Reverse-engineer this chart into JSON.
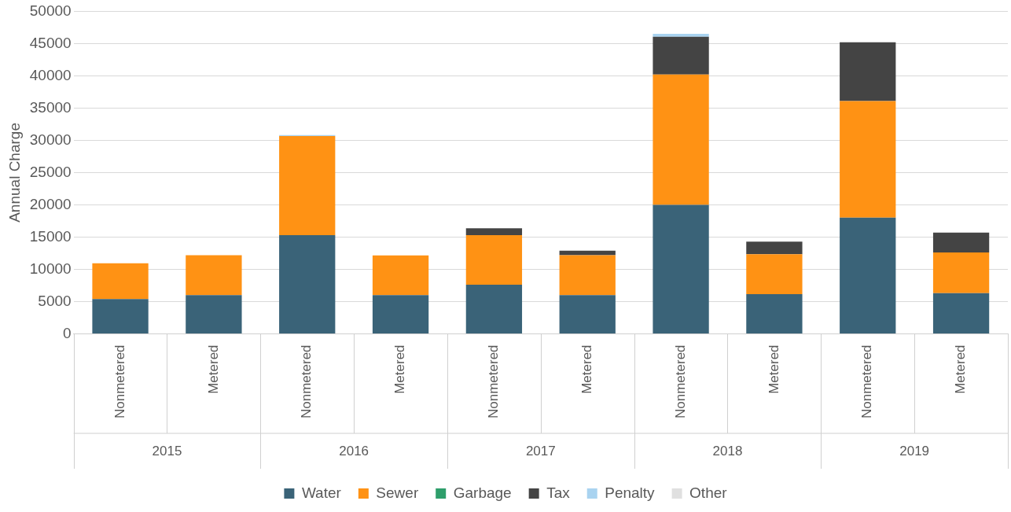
{
  "chart_data": {
    "type": "bar",
    "stacked": true,
    "ylabel": "Annual Charge",
    "categories": [
      "Nonmetered",
      "Metered",
      "Nonmetered",
      "Metered",
      "Nonmetered",
      "Metered",
      "Nonmetered",
      "Metered",
      "Nonmetered",
      "Metered"
    ],
    "annotations": [
      "2015",
      "2016",
      "2017",
      "2018",
      "2019"
    ],
    "series": [
      {
        "name": "Water",
        "color": "#3a6378",
        "values": [
          5400,
          6000,
          15300,
          6000,
          7600,
          6000,
          20000,
          6150,
          18000,
          6300
        ]
      },
      {
        "name": "Sewer",
        "color": "#ff9214",
        "values": [
          5550,
          6200,
          15350,
          6150,
          7700,
          6200,
          20200,
          6200,
          18100,
          6300
        ]
      },
      {
        "name": "Garbage",
        "color": "#2e9e6b",
        "values": [
          0,
          0,
          0,
          0,
          0,
          0,
          0,
          0,
          0,
          0
        ]
      },
      {
        "name": "Tax",
        "color": "#444444",
        "values": [
          0,
          0,
          0,
          0,
          1050,
          700,
          5850,
          1950,
          9100,
          3100
        ]
      },
      {
        "name": "Penalty",
        "color": "#a9d3f0",
        "values": [
          null,
          0,
          150,
          0,
          null,
          null,
          450,
          null,
          0,
          0
        ]
      },
      {
        "name": "Other",
        "color": "#e0e0e0",
        "values": [
          0,
          0,
          0,
          0,
          0,
          0,
          0,
          0,
          0,
          0
        ]
      }
    ],
    "ylim": [
      0,
      50000
    ],
    "yticks": [
      0,
      5000,
      10000,
      15000,
      20000,
      25000,
      30000,
      35000,
      40000,
      45000,
      50000
    ],
    "grid": "y",
    "legend": "bottom"
  }
}
